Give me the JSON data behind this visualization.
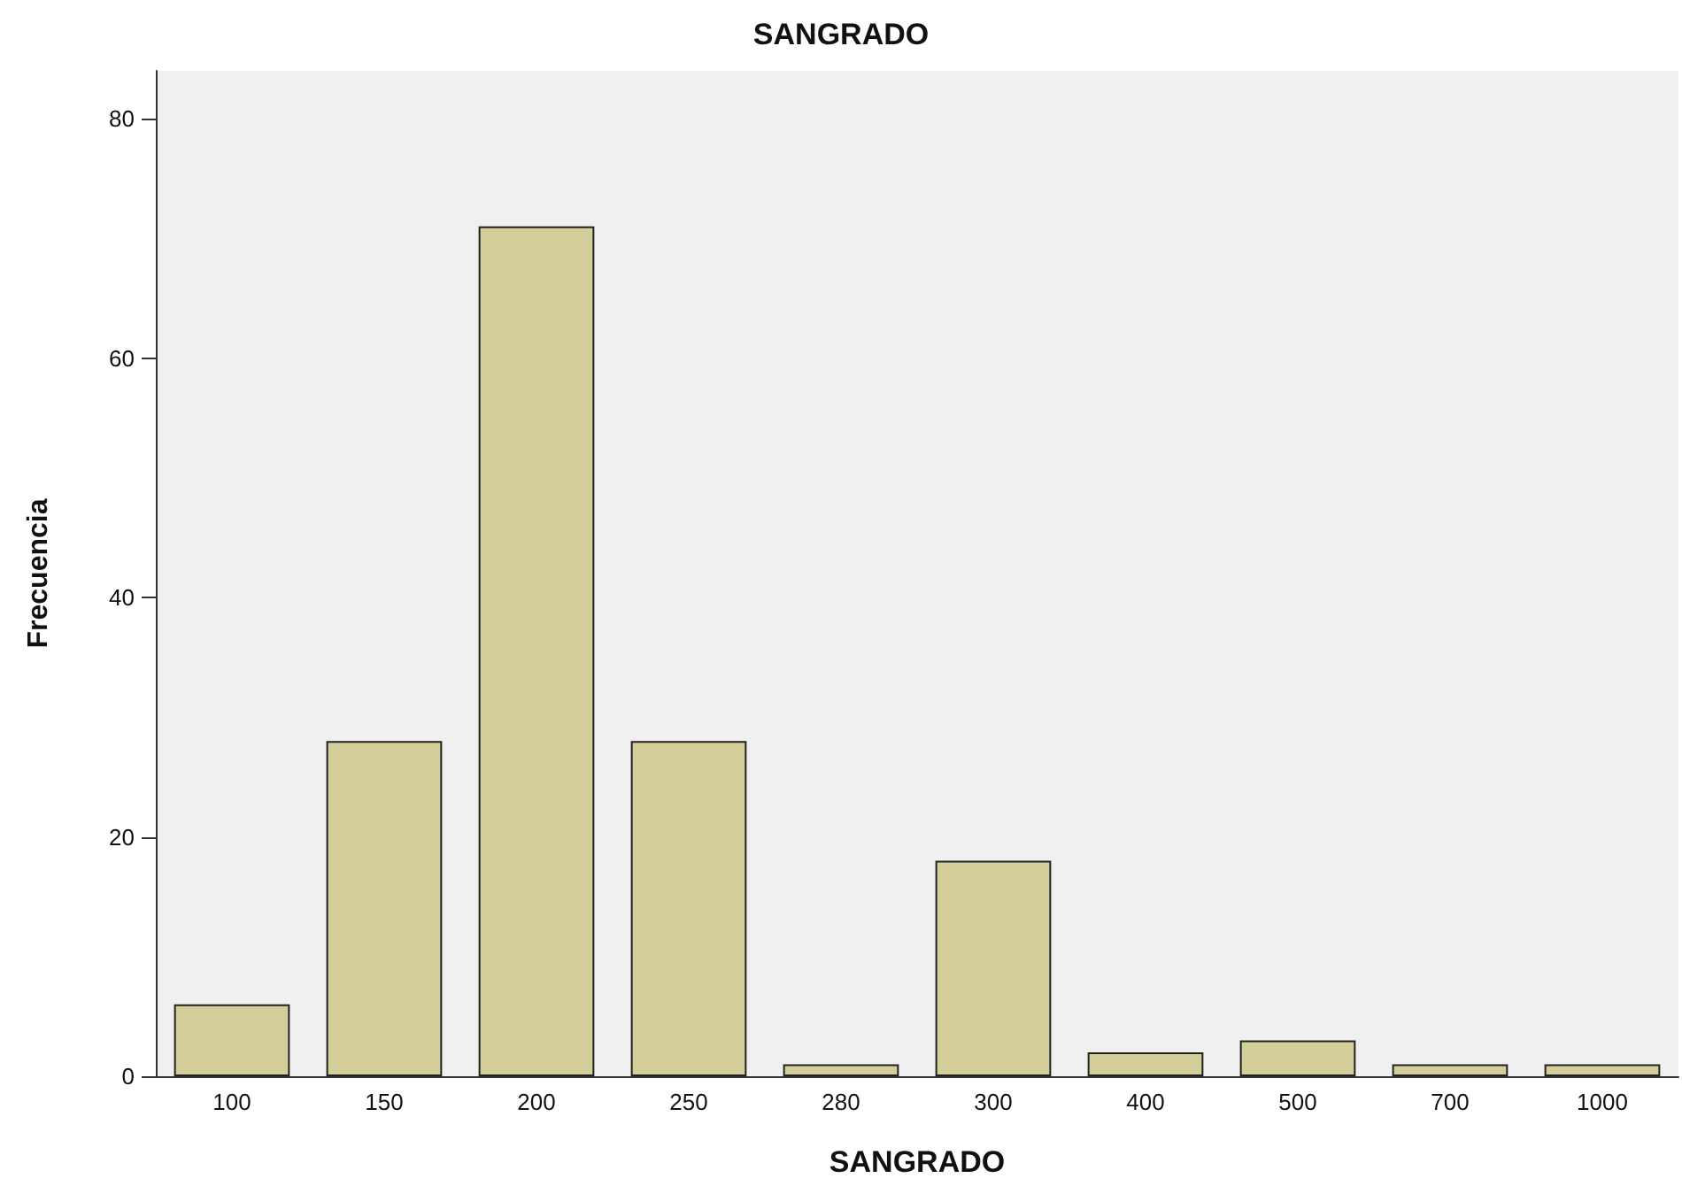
{
  "chart_data": {
    "type": "bar",
    "title": "SANGRADO",
    "xlabel": "SANGRADO",
    "ylabel": "Frecuencia",
    "categories": [
      "100",
      "150",
      "200",
      "250",
      "280",
      "300",
      "400",
      "500",
      "700",
      "1000"
    ],
    "values": [
      6,
      28,
      71,
      28,
      1,
      18,
      2,
      3,
      1,
      1
    ],
    "color": "#d3ce9a",
    "ylim": [
      0,
      84
    ],
    "yticks": [
      0,
      20,
      40,
      60,
      80
    ],
    "grid": false
  }
}
